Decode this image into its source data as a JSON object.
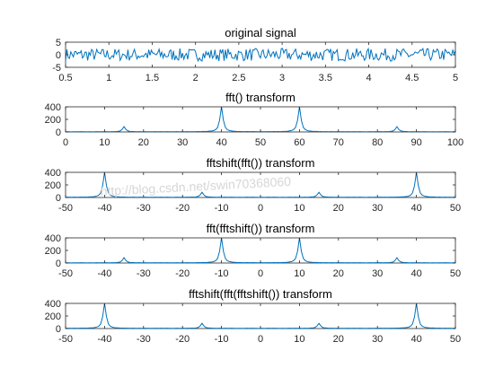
{
  "chart_data": [
    {
      "type": "line",
      "title": "original signal",
      "signal": "noise",
      "xlim": [
        0.5,
        5
      ],
      "ylim": [
        -5,
        5
      ],
      "xticks": [
        "0.5",
        "1",
        "1.5",
        "2",
        "2.5",
        "3",
        "3.5",
        "4",
        "4.5",
        "5"
      ],
      "yticks": [
        "-5",
        "0",
        "5"
      ],
      "amplitude": 2.5,
      "color": "#0072BD"
    },
    {
      "type": "line",
      "title": "fft() transform",
      "signal": "spikes",
      "xlim": [
        0,
        100
      ],
      "ylim": [
        0,
        400
      ],
      "xticks": [
        "0",
        "10",
        "20",
        "30",
        "40",
        "50",
        "60",
        "70",
        "80",
        "90",
        "100"
      ],
      "yticks": [
        "0",
        "200",
        "400"
      ],
      "peaks": [
        {
          "x": 15,
          "y": 80
        },
        {
          "x": 40,
          "y": 400
        },
        {
          "x": 60,
          "y": 400
        },
        {
          "x": 85,
          "y": 80
        }
      ],
      "color": "#0072BD"
    },
    {
      "type": "line",
      "title": "fftshift(fft()) transform",
      "signal": "spikes",
      "xlim": [
        -50,
        50
      ],
      "ylim": [
        0,
        400
      ],
      "xticks": [
        "-50",
        "-40",
        "-30",
        "-20",
        "-10",
        "0",
        "10",
        "20",
        "30",
        "40",
        "50"
      ],
      "yticks": [
        "0",
        "200",
        "400"
      ],
      "peaks": [
        {
          "x": -40,
          "y": 400
        },
        {
          "x": -15,
          "y": 80
        },
        {
          "x": 15,
          "y": 80
        },
        {
          "x": 40,
          "y": 400
        }
      ],
      "color": "#0072BD"
    },
    {
      "type": "line",
      "title": "fft(fftshift()) transform",
      "signal": "spikes",
      "xlim": [
        -50,
        50
      ],
      "ylim": [
        0,
        400
      ],
      "xticks": [
        "-50",
        "-40",
        "-30",
        "-20",
        "-10",
        "0",
        "10",
        "20",
        "30",
        "40",
        "50"
      ],
      "yticks": [
        "0",
        "200",
        "400"
      ],
      "peaks": [
        {
          "x": -35,
          "y": 80
        },
        {
          "x": -10,
          "y": 400
        },
        {
          "x": 10,
          "y": 400
        },
        {
          "x": 35,
          "y": 80
        }
      ],
      "color": "#0072BD"
    },
    {
      "type": "line",
      "title": "fftshift(fft(fftshift()) transform",
      "signal": "spikes",
      "xlim": [
        -50,
        50
      ],
      "ylim": [
        0,
        400
      ],
      "xticks": [
        "-50",
        "-40",
        "-30",
        "-20",
        "-10",
        "0",
        "10",
        "20",
        "30",
        "40",
        "50"
      ],
      "yticks": [
        "0",
        "200",
        "400"
      ],
      "peaks": [
        {
          "x": -40,
          "y": 400
        },
        {
          "x": -15,
          "y": 80
        },
        {
          "x": 15,
          "y": 80
        },
        {
          "x": 40,
          "y": 400
        }
      ],
      "color": "#0072BD"
    }
  ],
  "watermark": "http://blog.csdn.net/swin70368060"
}
